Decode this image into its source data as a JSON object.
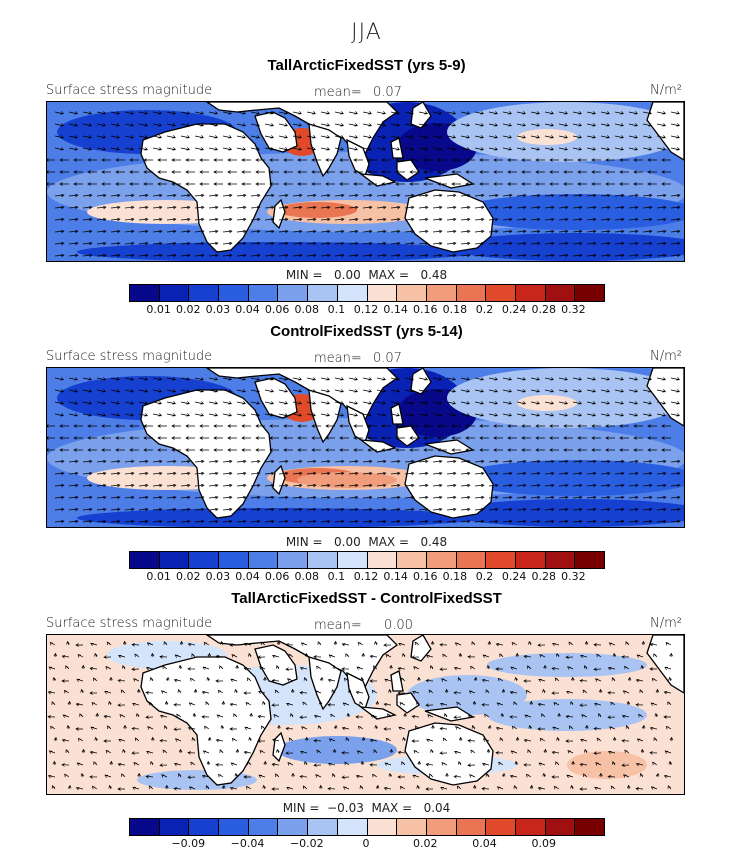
{
  "season": "JJA",
  "panels": [
    {
      "title": "TallArcticFixedSST (yrs 5-9)",
      "label": "Surface stress magnitude",
      "mean_label": "mean=",
      "mean_value": "0.07",
      "units": "N/m²",
      "min_max": "MIN =   0.00  MAX =   0.48",
      "colorbar_ticks": [
        "0.01",
        "0.02",
        "0.03",
        "0.04",
        "0.06",
        "0.08",
        "0.1",
        "0.12",
        "0.14",
        "0.16",
        "0.18",
        "0.2",
        "0.24",
        "0.28",
        "0.32"
      ],
      "colorbar_colors": [
        "#08088a",
        "#0a22b4",
        "#1540d0",
        "#2a5ee0",
        "#4d7ee8",
        "#7ba0ec",
        "#a9c4f2",
        "#d4e4fa",
        "#fbe0d4",
        "#f7c1a6",
        "#f19d7c",
        "#ea7552",
        "#e04a2a",
        "#c8261a",
        "#a01010",
        "#780000"
      ]
    },
    {
      "title": "ControlFixedSST (yrs 5-14)",
      "label": "Surface stress magnitude",
      "mean_label": "mean=",
      "mean_value": "0.07",
      "units": "N/m²",
      "min_max": "MIN =   0.00  MAX =   0.48",
      "colorbar_ticks": [
        "0.01",
        "0.02",
        "0.03",
        "0.04",
        "0.06",
        "0.08",
        "0.1",
        "0.12",
        "0.14",
        "0.16",
        "0.18",
        "0.2",
        "0.24",
        "0.28",
        "0.32"
      ],
      "colorbar_colors": [
        "#08088a",
        "#0a22b4",
        "#1540d0",
        "#2a5ee0",
        "#4d7ee8",
        "#7ba0ec",
        "#a9c4f2",
        "#d4e4fa",
        "#fbe0d4",
        "#f7c1a6",
        "#f19d7c",
        "#ea7552",
        "#e04a2a",
        "#c8261a",
        "#a01010",
        "#780000"
      ]
    },
    {
      "title": "TallArcticFixedSST - ControlFixedSST",
      "label": "Surface stress magnitude",
      "mean_label": "mean=",
      "mean_value": "0.00",
      "units": "N/m²",
      "min_max": "MIN =  −0.03  MAX =   0.04",
      "colorbar_ticks": [
        "−0.09",
        "−0.04",
        "−0.02",
        "0",
        "0.02",
        "0.04",
        "0.09"
      ],
      "colorbar_colors": [
        "#08088a",
        "#0a22b4",
        "#1540d0",
        "#2a5ee0",
        "#4d7ee8",
        "#7ba0ec",
        "#a9c4f2",
        "#d4e4fa",
        "#fbe0d4",
        "#f7c1a6",
        "#f19d7c",
        "#ea7552",
        "#e04a2a",
        "#c8261a",
        "#a01010",
        "#780000"
      ]
    }
  ]
}
